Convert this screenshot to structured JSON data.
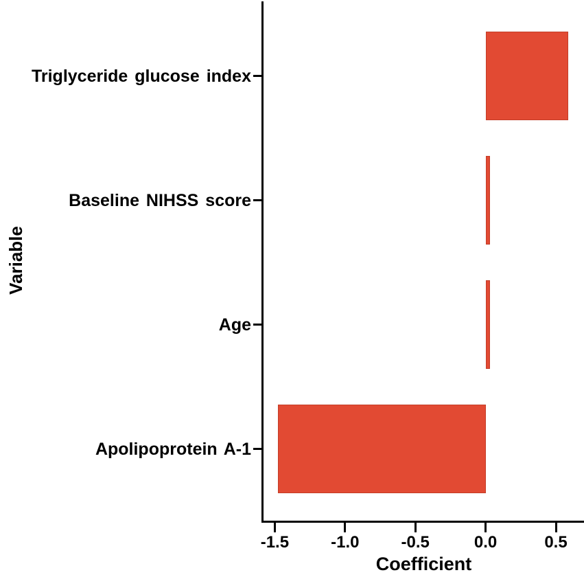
{
  "chart_data": {
    "type": "bar",
    "orientation": "horizontal",
    "title": "",
    "xlabel": "Coefficient",
    "ylabel": "Variable",
    "categories": [
      "Triglyceride glucose index",
      "Baseline NIHSS score",
      "Age",
      "Apolipoprotein A-1"
    ],
    "values": [
      0.59,
      0.03,
      0.03,
      -1.48
    ],
    "x_ticks": [
      -1.5,
      -1.0,
      -0.5,
      0.0,
      0.5
    ],
    "x_tick_labels": [
      "-1.5",
      "-1.0",
      "-0.5",
      "0.0",
      "0.5"
    ],
    "xlim": [
      -1.58,
      0.7
    ],
    "grid": false,
    "legend": "none",
    "bar_color": "#E24A33",
    "bar_edge_color": "#C33D27",
    "axis_color": "#000000",
    "background_color": "#FFFFFF"
  }
}
